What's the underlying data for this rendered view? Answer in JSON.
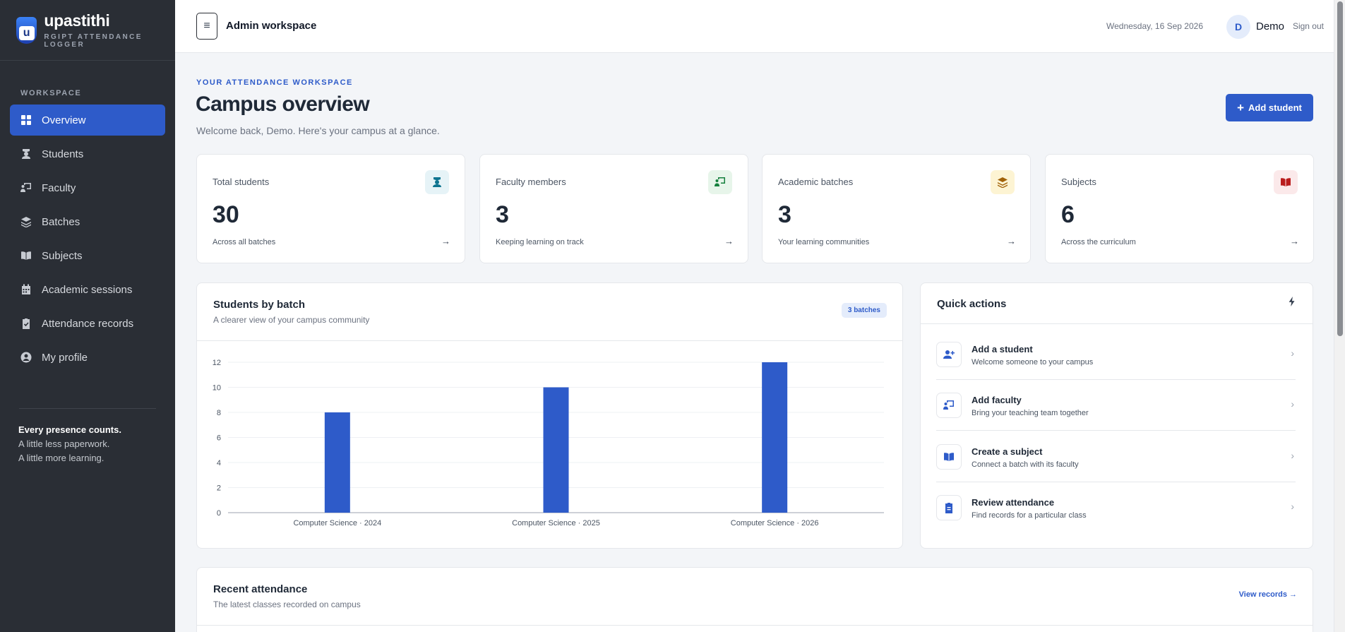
{
  "brand": {
    "logo_letter": "u",
    "name": "upastithi",
    "subtitle": "RGIPT ATTENDANCE LOGGER"
  },
  "sidebar": {
    "section_label": "WORKSPACE",
    "items": [
      {
        "label": "Overview",
        "icon": "grid-icon",
        "active": true
      },
      {
        "label": "Students",
        "icon": "student-icon"
      },
      {
        "label": "Faculty",
        "icon": "teacher-icon"
      },
      {
        "label": "Batches",
        "icon": "layers-icon"
      },
      {
        "label": "Subjects",
        "icon": "book-icon"
      },
      {
        "label": "Academic sessions",
        "icon": "calendar-icon"
      },
      {
        "label": "Attendance records",
        "icon": "clipboard-check-icon"
      },
      {
        "label": "My profile",
        "icon": "user-circle-icon"
      }
    ],
    "tagline": {
      "line1": "Every presence counts.",
      "line2": "A little less paperwork.",
      "line3": "A little more learning."
    }
  },
  "topbar": {
    "menu_glyph": "≡",
    "workspace_title": "Admin workspace",
    "date": "Wednesday, 16 Sep 2026",
    "avatar_initial": "D",
    "user_name": "Demo",
    "signout_label": "Sign out"
  },
  "header": {
    "eyebrow": "YOUR ATTENDANCE WORKSPACE",
    "title": "Campus overview",
    "subtitle": "Welcome back, Demo. Here's your campus at a glance.",
    "add_button": "Add student"
  },
  "stats": [
    {
      "label": "Total students",
      "value": "30",
      "note": "Across all batches",
      "icon": "student-icon",
      "color": "#0e7490",
      "bg": "#e6f3f7"
    },
    {
      "label": "Faculty members",
      "value": "3",
      "note": "Keeping learning on track",
      "icon": "teacher-icon",
      "color": "#15803d",
      "bg": "#e7f5ea"
    },
    {
      "label": "Academic batches",
      "value": "3",
      "note": "Your learning communities",
      "icon": "layers-icon",
      "color": "#a16207",
      "bg": "#fdf4d3"
    },
    {
      "label": "Subjects",
      "value": "6",
      "note": "Across the curriculum",
      "icon": "book-icon",
      "color": "#b91c1c",
      "bg": "#fbe9ea"
    }
  ],
  "chart_panel": {
    "title": "Students by batch",
    "subtitle": "A clearer view of your campus community",
    "badge": "3 batches"
  },
  "chart_data": {
    "type": "bar",
    "categories": [
      "Computer Science · 2024",
      "Computer Science · 2025",
      "Computer Science · 2026"
    ],
    "values": [
      8,
      10,
      12
    ],
    "yticks": [
      0,
      2,
      4,
      6,
      8,
      10,
      12
    ],
    "ylim": [
      0,
      12
    ],
    "color": "#2e5bc9",
    "grid": true
  },
  "quick_actions": {
    "title": "Quick actions",
    "items": [
      {
        "title": "Add a student",
        "sub": "Welcome someone to your campus",
        "icon": "user-plus-icon"
      },
      {
        "title": "Add faculty",
        "sub": "Bring your teaching team together",
        "icon": "teacher-icon"
      },
      {
        "title": "Create a subject",
        "sub": "Connect a batch with its faculty",
        "icon": "book-icon"
      },
      {
        "title": "Review attendance",
        "sub": "Find records for a particular class",
        "icon": "clipboard-icon"
      }
    ]
  },
  "recent": {
    "title": "Recent attendance",
    "subtitle": "The latest classes recorded on campus",
    "link": "View records →"
  },
  "colors": {
    "accent": "#2e5bc9",
    "sidebar_bg": "#2a2e35",
    "page_bg": "#f3f5f8"
  }
}
